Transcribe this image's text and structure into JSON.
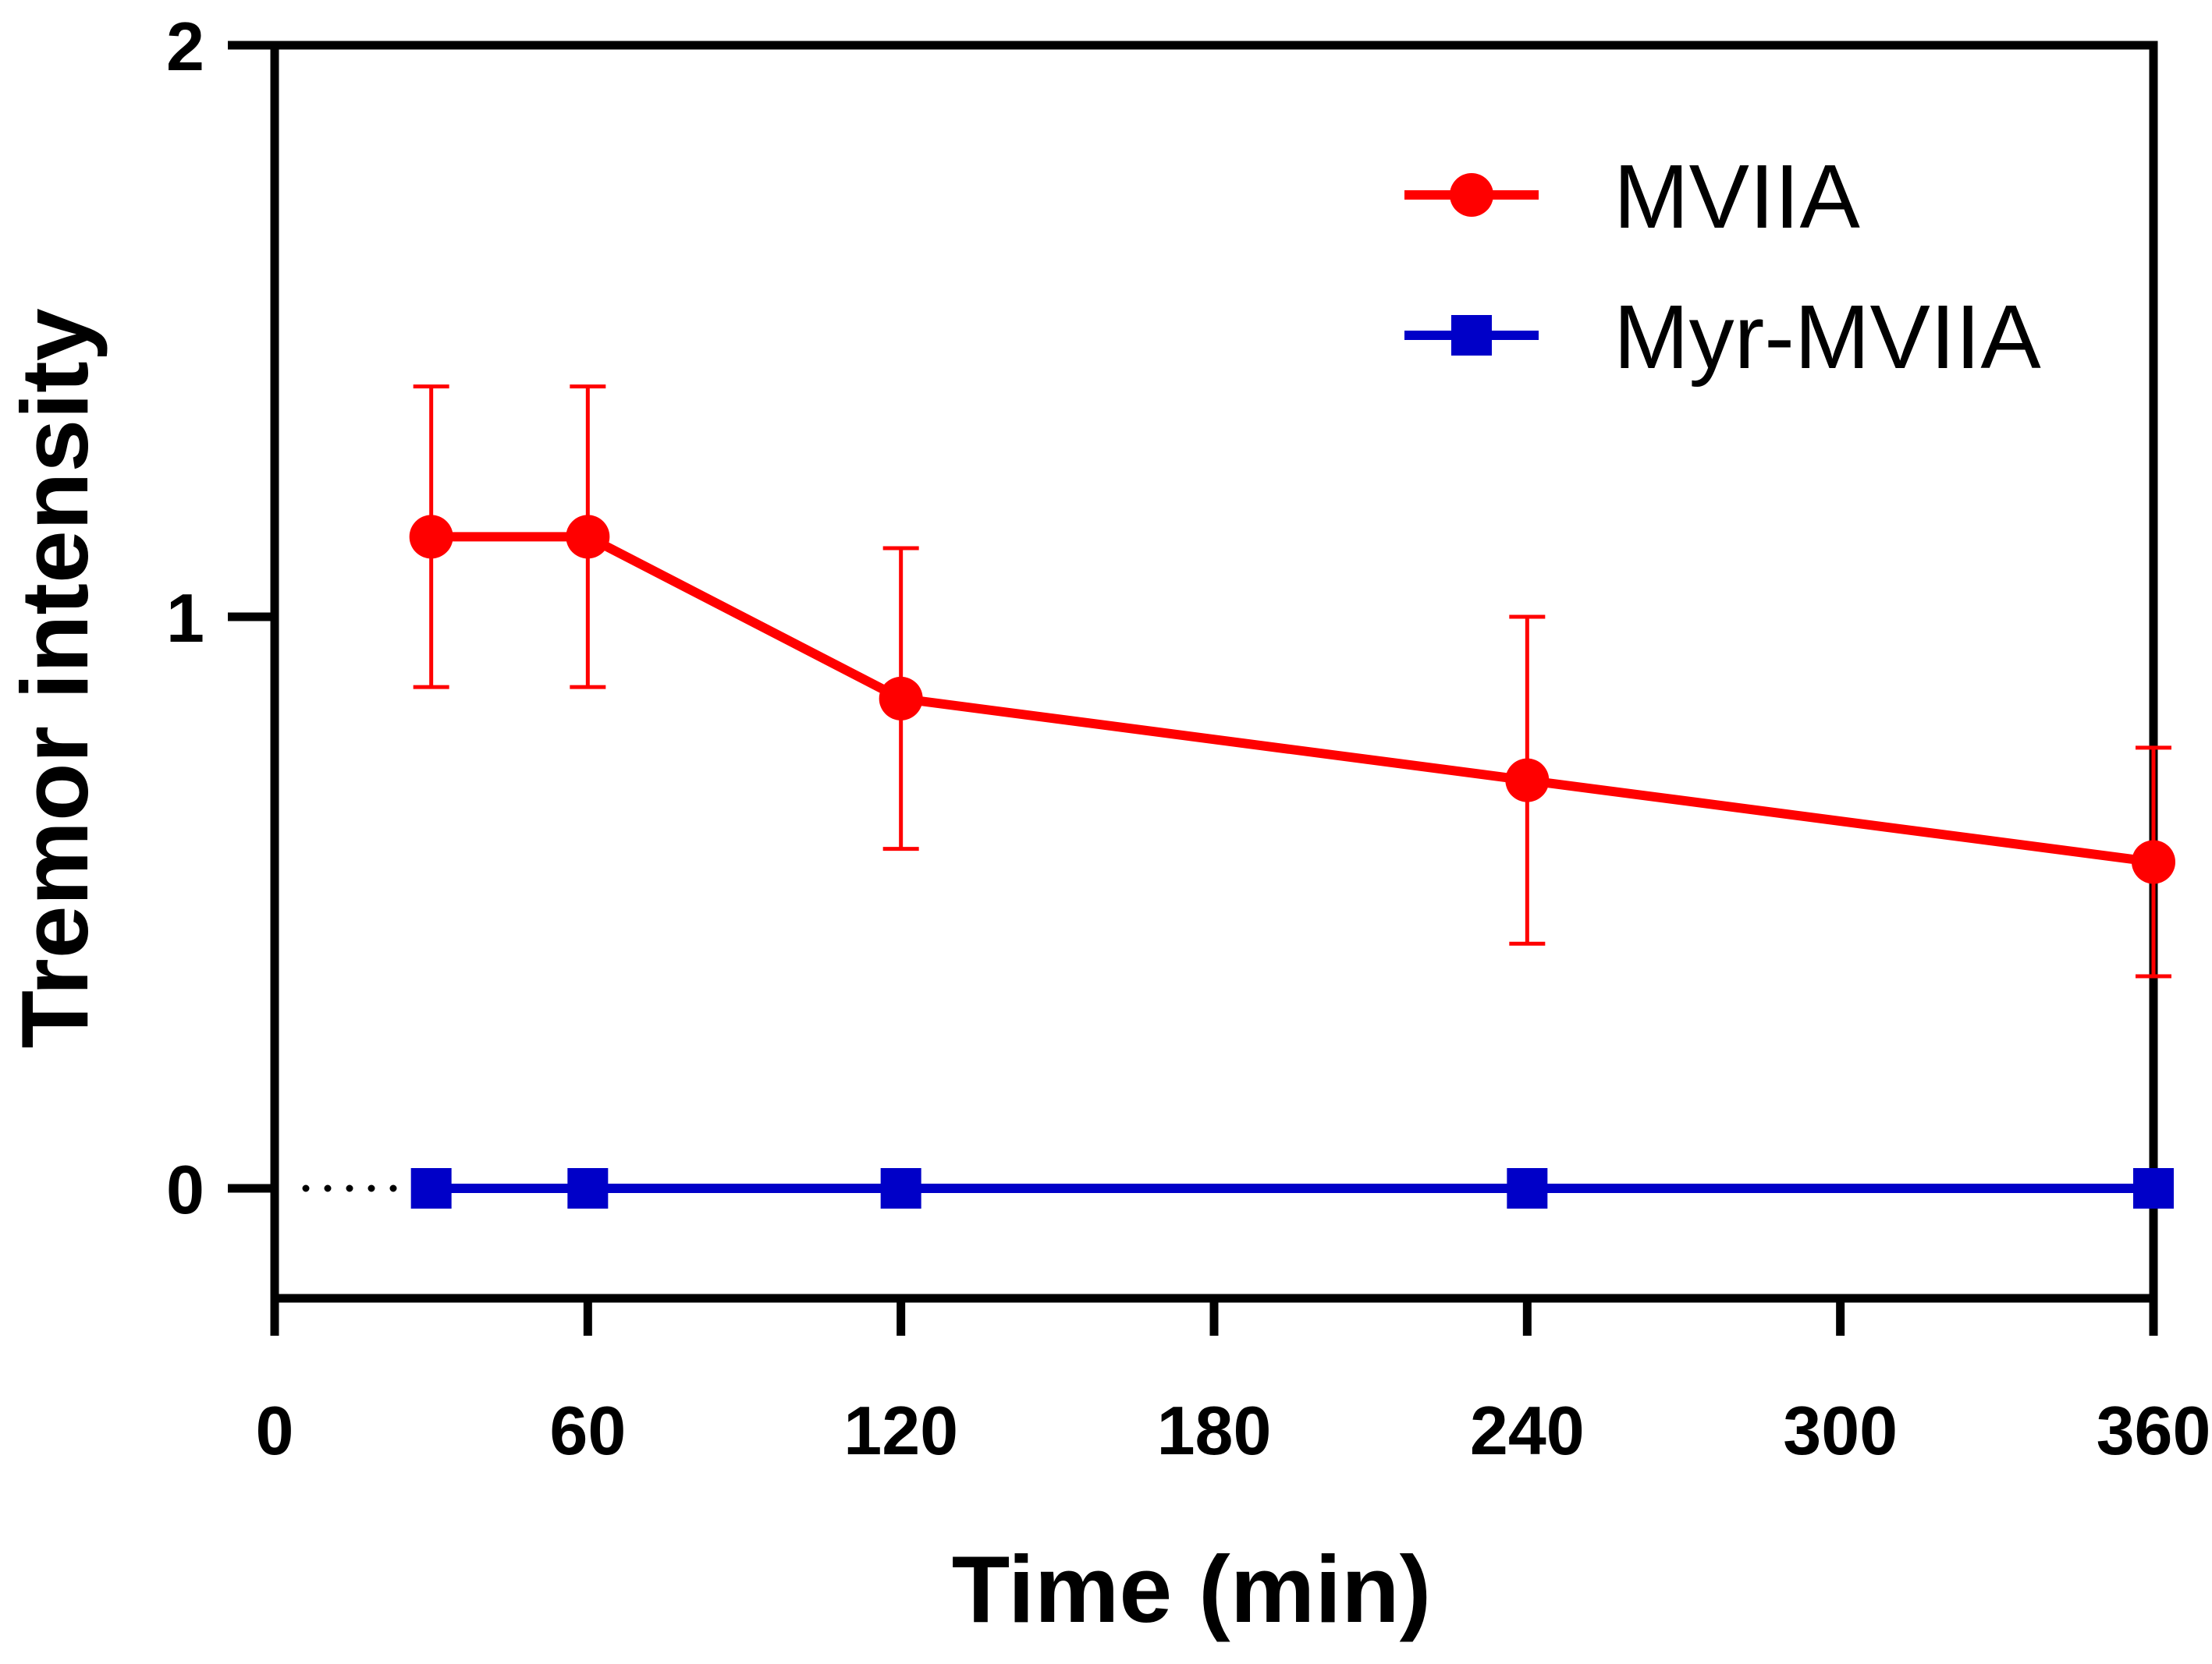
{
  "chart_data": {
    "type": "line",
    "title": "",
    "xlabel": "Time (min)",
    "ylabel": "Tremor intensity",
    "xlim": [
      0,
      360
    ],
    "ylim": [
      -0.2,
      2
    ],
    "x_ticks": [
      0,
      60,
      120,
      180,
      240,
      300,
      360
    ],
    "x_tick_labels": [
      "0",
      "60",
      "120",
      "180",
      "240",
      "300",
      "360"
    ],
    "y_ticks": [
      0,
      1,
      2
    ],
    "y_tick_labels": [
      "0",
      "1",
      "2"
    ],
    "grid": false,
    "legend_position": "top-right",
    "series": [
      {
        "name": "MVIIA",
        "color": "#ff0000",
        "marker": "circle",
        "x": [
          30,
          60,
          120,
          240,
          360
        ],
        "values": [
          1.14,
          1.14,
          0.857,
          0.714,
          0.571
        ],
        "error": [
          0.263,
          0.263,
          0.263,
          0.286,
          0.2
        ]
      },
      {
        "name": "Myr-MVIIA",
        "color": "#0000c8",
        "marker": "square",
        "x": [
          30,
          60,
          120,
          240,
          360
        ],
        "values": [
          0,
          0,
          0,
          0,
          0
        ],
        "error": [
          0,
          0,
          0,
          0,
          0
        ]
      }
    ],
    "connector_from_origin": {
      "style": "dotted",
      "x": [
        0,
        30
      ],
      "value": 0
    }
  }
}
